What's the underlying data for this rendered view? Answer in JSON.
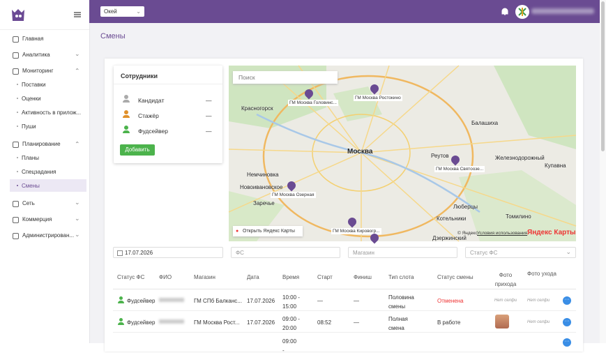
{
  "sidebar": {
    "menu": [
      {
        "label": "Главная"
      },
      {
        "label": "Аналитика"
      },
      {
        "label": "Мониторинг",
        "children": [
          "Поставки",
          "Оценки",
          "Активность в прилож...",
          "Пуши"
        ]
      },
      {
        "label": "Планирование",
        "children": [
          "Планы",
          "Спецзадания",
          "Смены"
        ]
      },
      {
        "label": "Сеть"
      },
      {
        "label": "Коммерция"
      },
      {
        "label": "Администрирован..."
      }
    ]
  },
  "topbar": {
    "store_select": "Окей"
  },
  "page": {
    "title": "Смены"
  },
  "employees": {
    "title": "Сотрудники",
    "rows": [
      {
        "label": "Кандидат",
        "value": "—"
      },
      {
        "label": "Стажёр",
        "value": "—"
      },
      {
        "label": "Фудсейвер",
        "value": "—"
      }
    ],
    "button": "Добавить"
  },
  "map": {
    "search_placeholder": "Поиск",
    "places": [
      "Красногорск",
      "Москва",
      "Балашиха",
      "Реутов",
      "Железнодорожный",
      "Купавна",
      "Немчиновка",
      "Новоивановское",
      "Заречье",
      "Люберцы",
      "Котельники",
      "Томилино",
      "Дзержинский"
    ],
    "pins": [
      "ГМ Москва Головинс...",
      "ГМ Москва Ростокино",
      "ГМ Москва Святоозе...",
      "ГМ Москва Озерная",
      "ГМ Москва Кировогр..."
    ],
    "open_link": "Открыть Яндекс Карты",
    "copyright": "© Яндекс",
    "terms": "Условия использования",
    "brand": "Яндекс Карты"
  },
  "filters": {
    "date": "17.07.2026",
    "fs": "ФС",
    "store": "Магазин",
    "status": "Статус ФС"
  },
  "table": {
    "headers": [
      "Статус ФС",
      "ФИО",
      "Магазин",
      "Дата",
      "Время",
      "Старт",
      "Финиш",
      "Тип слота",
      "Статус смены",
      "Фото прихода",
      "Фото ухода"
    ],
    "rows": [
      [
        "Фудсейвер",
        null,
        "ГМ СПб Балканс...",
        "17.07.2026",
        "10:00 - 15:00",
        "—",
        "—",
        "Половина смены",
        "Отменена",
        "Нет селфи",
        "Нет селфи"
      ],
      [
        "Фудсейвер",
        null,
        "ГМ Москва Рост...",
        "17.07.2026",
        "09:00 - 20:00",
        "08:52",
        "—",
        "Полная смена",
        "В работе",
        null,
        "Нет селфи"
      ],
      [
        null,
        null,
        null,
        null,
        "09:00 -",
        null,
        null,
        null,
        null,
        null,
        null
      ]
    ]
  }
}
